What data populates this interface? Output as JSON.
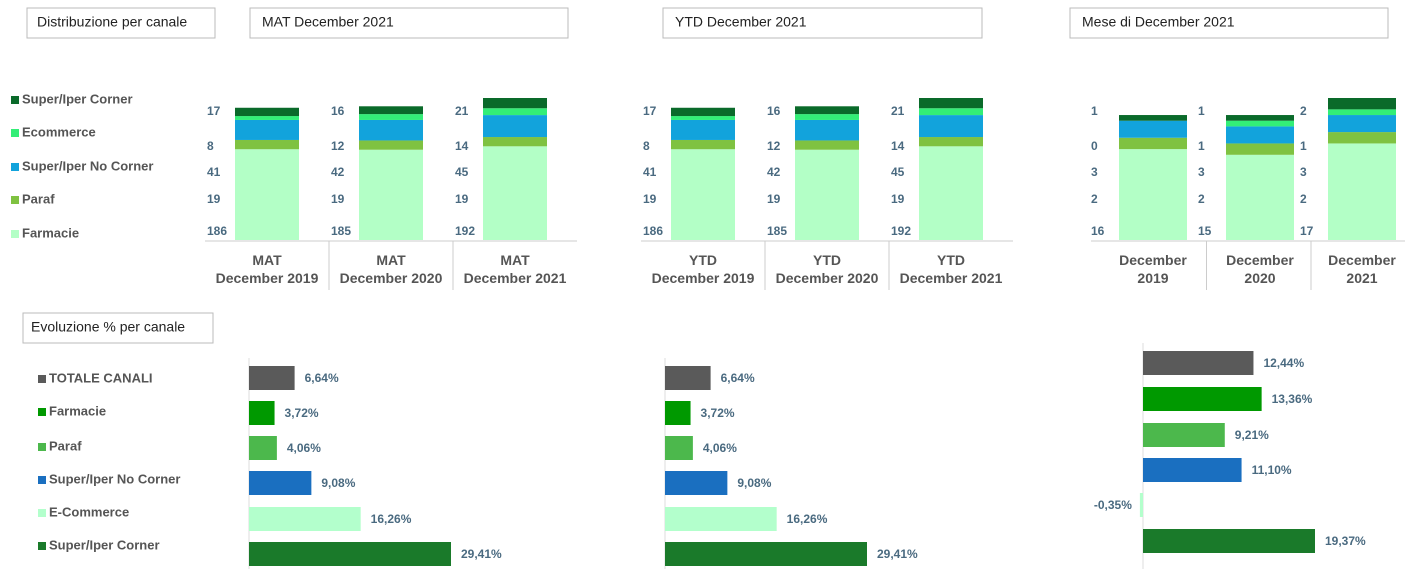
{
  "section_titles": [
    "Distribuzione per canale",
    "Evoluzione % per canale"
  ],
  "chart_data": [
    {
      "type": "stacked_bar",
      "title": "MAT December 2021",
      "categories": [
        "MAT\nDecember 2019",
        "MAT\nDecember 2020",
        "MAT\nDecember 2021"
      ],
      "series": [
        {
          "name": "Farmacie",
          "color": "#b3ffc6",
          "values": [
            186,
            185,
            192
          ]
        },
        {
          "name": "Paraf",
          "color": "#7fc241",
          "values": [
            19,
            19,
            19
          ]
        },
        {
          "name": "Super/Iper No Corner",
          "color": "#12a3dc",
          "values": [
            41,
            42,
            45
          ]
        },
        {
          "name": "Ecommerce",
          "color": "#33ee77",
          "values": [
            8,
            12,
            14
          ]
        },
        {
          "name": "Super/Iper Corner",
          "color": "#0a6a2a",
          "values": [
            17,
            16,
            21
          ]
        }
      ]
    },
    {
      "type": "stacked_bar",
      "title": "YTD December 2021",
      "categories": [
        "YTD\nDecember 2019",
        "YTD\nDecember 2020",
        "YTD\nDecember 2021"
      ],
      "series": [
        {
          "color": "#b3ffc6",
          "values": [
            186,
            185,
            192
          ]
        },
        {
          "color": "#7fc241",
          "values": [
            19,
            19,
            19
          ]
        },
        {
          "color": "#12a3dc",
          "values": [
            41,
            42,
            45
          ]
        },
        {
          "color": "#33ee77",
          "values": [
            8,
            12,
            14
          ]
        },
        {
          "color": "#0a6a2a",
          "values": [
            17,
            16,
            21
          ]
        }
      ]
    },
    {
      "type": "stacked_bar",
      "title": "Mese di December 2021",
      "categories": [
        "December\n2019",
        "December\n2020",
        "December\n2021"
      ],
      "series": [
        {
          "color": "#b3ffc6",
          "values": [
            16,
            15,
            17
          ]
        },
        {
          "color": "#7fc241",
          "values": [
            2,
            2,
            2
          ]
        },
        {
          "color": "#12a3dc",
          "values": [
            3,
            3,
            3
          ]
        },
        {
          "color": "#33ee77",
          "values": [
            0,
            1,
            1
          ]
        },
        {
          "color": "#0a6a2a",
          "values": [
            1,
            1,
            2
          ]
        }
      ]
    },
    {
      "type": "hbar",
      "categories": [
        "TOTALE CANALI",
        "Farmacie",
        "Paraf",
        "Super/Iper No Corner",
        "E-Commerce",
        "Super/Iper Corner"
      ],
      "colors": [
        "#5a5a5a",
        "#009900",
        "#4cb84c",
        "#1a6fc0",
        "#b3ffcc",
        "#1a7a2a"
      ],
      "values": [
        6.64,
        3.72,
        4.06,
        9.08,
        16.26,
        29.41
      ],
      "value_labels": [
        "6,64%",
        "3,72%",
        "4,06%",
        "9,08%",
        "16,26%",
        "29,41%"
      ]
    },
    {
      "type": "hbar",
      "colors": [
        "#5a5a5a",
        "#009900",
        "#4cb84c",
        "#1a6fc0",
        "#b3ffcc",
        "#1a7a2a"
      ],
      "values": [
        6.64,
        3.72,
        4.06,
        9.08,
        16.26,
        29.41
      ],
      "value_labels": [
        "6,64%",
        "3,72%",
        "4,06%",
        "9,08%",
        "16,26%",
        "29,41%"
      ]
    },
    {
      "type": "hbar",
      "colors": [
        "#5a5a5a",
        "#009900",
        "#4cb84c",
        "#1a6fc0",
        "#b3ffcc",
        "#1a7a2a"
      ],
      "values": [
        12.44,
        13.36,
        9.21,
        11.1,
        -0.35,
        19.37
      ],
      "value_labels": [
        "12,44%",
        "13,36%",
        "9,21%",
        "11,10%",
        "-0,35%",
        "19,37%"
      ]
    }
  ]
}
